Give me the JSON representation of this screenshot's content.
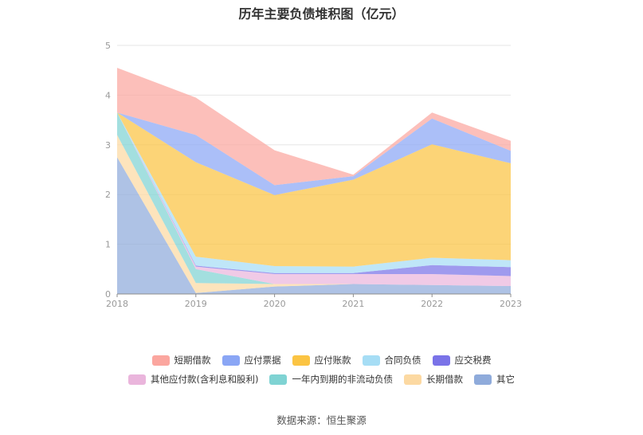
{
  "chart_data": {
    "type": "area",
    "stacked": true,
    "title": "历年主要负债堆积图（亿元）",
    "x": [
      "2018",
      "2019",
      "2020",
      "2021",
      "2022",
      "2023"
    ],
    "ylim": [
      0,
      5
    ],
    "yticks": [
      "0",
      "1",
      "2",
      "3",
      "4",
      "5"
    ],
    "grid": true,
    "legend_position": "bottom",
    "series": [
      {
        "name": "其它",
        "color": "#8fabdb",
        "values": [
          2.75,
          0.02,
          0.15,
          0.2,
          0.18,
          0.16
        ]
      },
      {
        "name": "长期借款",
        "color": "#fcd9a2",
        "values": [
          0.45,
          0.2,
          0.05,
          0.0,
          0.0,
          0.0
        ]
      },
      {
        "name": "一年内到期的非流动负债",
        "color": "#7fd3d3",
        "values": [
          0.45,
          0.28,
          0.0,
          0.0,
          0.0,
          0.0
        ]
      },
      {
        "name": "其他应付款(含利息和股利)",
        "color": "#eab5dc",
        "values": [
          0.0,
          0.05,
          0.2,
          0.2,
          0.22,
          0.2
        ]
      },
      {
        "name": "应交税费",
        "color": "#7a73e8",
        "values": [
          0.0,
          0.02,
          0.02,
          0.02,
          0.18,
          0.18
        ]
      },
      {
        "name": "合同负债",
        "color": "#a6ddf5",
        "values": [
          0.0,
          0.18,
          0.14,
          0.13,
          0.15,
          0.14
        ]
      },
      {
        "name": "应付账款",
        "color": "#fbc443",
        "values": [
          0.0,
          1.9,
          1.43,
          1.75,
          2.28,
          1.95
        ]
      },
      {
        "name": "应付票据",
        "color": "#8aa6f5",
        "values": [
          0.0,
          0.55,
          0.2,
          0.07,
          0.52,
          0.25
        ]
      },
      {
        "name": "短期借款",
        "color": "#fba69f",
        "values": [
          0.9,
          0.75,
          0.7,
          0.03,
          0.12,
          0.2
        ]
      }
    ]
  },
  "legend_rows": [
    [
      0,
      1,
      2,
      3,
      4
    ],
    [
      5,
      6,
      7,
      8
    ]
  ],
  "legend_order_names": [
    "短期借款",
    "应付票据",
    "应付账款",
    "合同负债",
    "应交税费",
    "其他应付款(含利息和股利)",
    "一年内到期的非流动负债",
    "长期借款",
    "其它"
  ],
  "source": "数据来源：恒生聚源"
}
